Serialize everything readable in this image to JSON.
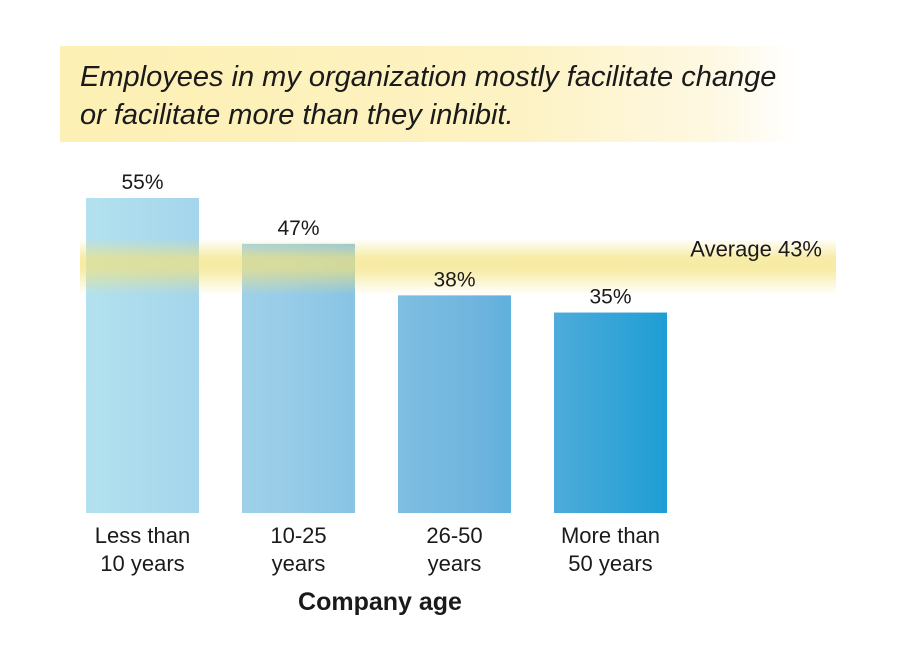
{
  "chart_data": {
    "type": "bar",
    "title": "Employees in my organization mostly facilitate change or facilitate more than they inhibit.",
    "categories": [
      [
        "Less than",
        "10 years"
      ],
      [
        "10-25",
        "years"
      ],
      [
        "26-50",
        "years"
      ],
      [
        "More than",
        "50 years"
      ]
    ],
    "values": [
      55,
      47,
      38,
      35
    ],
    "data_labels": [
      "55%",
      "47%",
      "38%",
      "35%"
    ],
    "xlabel": "Company age",
    "ylabel": "",
    "ylim": [
      0,
      55
    ],
    "grid": false,
    "average": {
      "value": 43,
      "label": "Average 43%"
    },
    "colors": {
      "bar_gradient": [
        "#b3e1ef",
        "#99cde8",
        "#6fb5de",
        "#1f9ed4"
      ],
      "average_band": "#f3e27a",
      "title_band": "#fdf0b4"
    }
  }
}
